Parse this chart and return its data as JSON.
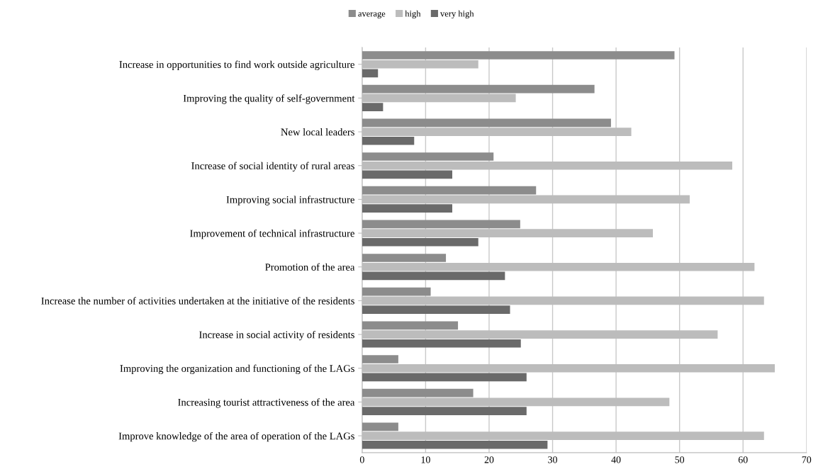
{
  "chart_data": {
    "type": "bar",
    "orientation": "horizontal",
    "categories": [
      "Increase in opportunities to find work outside agriculture",
      "Improving the quality of self-government",
      "New local leaders",
      "Increase of social identity of rural areas",
      "Improving social infrastructure",
      "Improvement of technical infrastructure",
      "Promotion of the area",
      "Increase the number of activities undertaken at the initiative of the residents",
      "Increase in social activity of residents",
      "Improving the organization and functioning of the LAGs",
      "Increasing tourist attractiveness of the area",
      "Improve knowledge of the area of operation of the LAGs"
    ],
    "series": [
      {
        "name": "average",
        "color": "#8c8c8c",
        "values": [
          49.2,
          36.6,
          39.2,
          20.7,
          27.4,
          24.9,
          13.2,
          10.8,
          15.1,
          5.7,
          17.5,
          5.7
        ]
      },
      {
        "name": "high",
        "color": "#bcbcbc",
        "values": [
          18.3,
          24.2,
          42.4,
          58.3,
          51.6,
          45.8,
          61.8,
          63.3,
          56.0,
          65.0,
          48.4,
          63.3
        ]
      },
      {
        "name": "very high",
        "color": "#6a6a6a",
        "values": [
          2.5,
          3.3,
          8.2,
          14.2,
          14.2,
          18.3,
          22.5,
          23.3,
          25.0,
          25.9,
          25.9,
          29.2
        ]
      }
    ],
    "xlim": [
      0,
      70
    ],
    "xticks": [
      0,
      10,
      20,
      30,
      40,
      50,
      60,
      70
    ],
    "grid": "x",
    "legend": "top"
  }
}
